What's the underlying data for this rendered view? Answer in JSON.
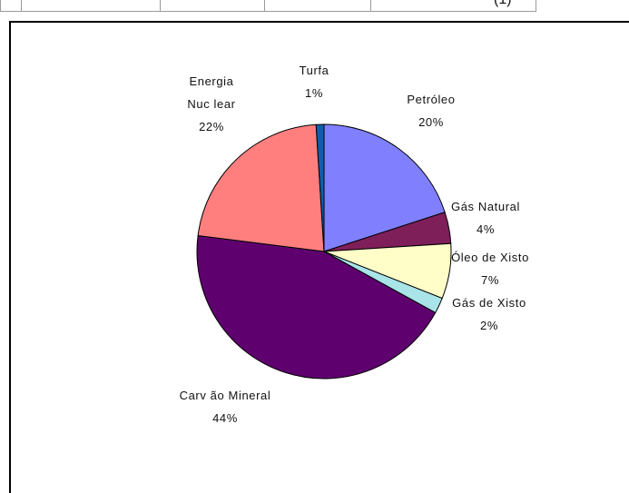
{
  "header_fragment": {
    "text": "(1)"
  },
  "chart_data": {
    "type": "pie",
    "slices": [
      {
        "label_lines": [
          "Petróleo"
        ],
        "pct_label": "20%",
        "value": 20,
        "color": "#8080ff"
      },
      {
        "label_lines": [
          "Gás Natural"
        ],
        "pct_label": "4%",
        "value": 4,
        "color": "#7f1f5a"
      },
      {
        "label_lines": [
          "Óleo de Xisto"
        ],
        "pct_label": "7%",
        "value": 7,
        "color": "#fffdc8"
      },
      {
        "label_lines": [
          "Gás de Xisto"
        ],
        "pct_label": "2%",
        "value": 2,
        "color": "#a8e4e8"
      },
      {
        "label_lines": [
          "Carv ão Mineral"
        ],
        "pct_label": "44%",
        "value": 44,
        "color": "#5f006f"
      },
      {
        "label_lines": [
          "Energia",
          "Nuc lear"
        ],
        "pct_label": "22%",
        "value": 22,
        "color": "#ff7f7f"
      },
      {
        "label_lines": [
          "Turfa"
        ],
        "pct_label": "1%",
        "value": 1,
        "color": "#0e5faa"
      }
    ],
    "start_angle_deg": 0,
    "direction": "clockwise"
  }
}
